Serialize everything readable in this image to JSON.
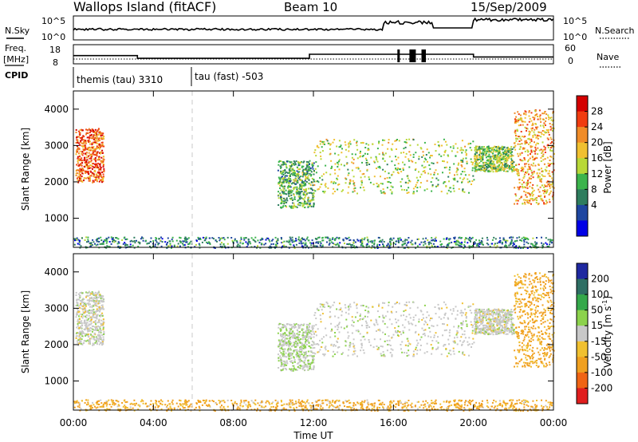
{
  "header": {
    "title": "Wallops Island (fitACF)",
    "beam": "Beam 10",
    "date": "15/Sep/2009"
  },
  "top_panels": {
    "nsky_label": "N.Sky",
    "nsky_ticks": [
      "10^5",
      "10^0"
    ],
    "nsearch_label": "N.Search",
    "freq_label_1": "Freq.",
    "freq_label_2": "[MHz]",
    "freq_ticks": [
      "18",
      "8"
    ],
    "nave_label": "Nave",
    "nave_ticks": [
      "60",
      "0"
    ],
    "cpid_label": "CPID",
    "cpid_1": "themis (tau) 3310",
    "cpid_2": "tau (fast) -503"
  },
  "time_axis": {
    "ticks": [
      "00:00",
      "04:00",
      "08:00",
      "12:00",
      "16:00",
      "20:00",
      "00:00"
    ],
    "label": "Time UT"
  },
  "range_axis": {
    "ticks": [
      "1000",
      "2000",
      "3000",
      "4000"
    ],
    "label": "Slant Range [km]"
  },
  "power_scale": {
    "label": "Power [dB]",
    "ticks": [
      "28",
      "24",
      "20",
      "16",
      "12",
      "8",
      "4"
    ],
    "colors": [
      "#d40000",
      "#f03c10",
      "#f08c28",
      "#f0c030",
      "#b8d838",
      "#3cb44c",
      "#2e7d5e",
      "#1e46a0",
      "#0000e6"
    ]
  },
  "velocity_scale": {
    "label": "Velocity [m s^-1]",
    "ticks": [
      "200",
      "100",
      "50",
      "15",
      "-15",
      "-50",
      "-100",
      "-200"
    ],
    "colors": [
      "#1e28a0",
      "#2e6e64",
      "#34a84a",
      "#8cd24c",
      "#c8c8c8",
      "#f0c030",
      "#f0a020",
      "#f06414",
      "#e01e1e"
    ]
  },
  "chart_data": {
    "type": "heatmap",
    "x_unit": "hours UT",
    "xlim": [
      0,
      24
    ],
    "ylim": [
      200,
      4500
    ],
    "echo_regions": [
      {
        "x": [
          0.1,
          1.5
        ],
        "y": [
          2000,
          3500
        ],
        "power_dB": 26,
        "velocity": 0
      },
      {
        "x": [
          0.0,
          24.0
        ],
        "y": [
          200,
          500
        ],
        "power_dB": 8,
        "velocity": -40
      },
      {
        "x": [
          10.2,
          12.0
        ],
        "y": [
          1300,
          2600
        ],
        "power_dB": 12,
        "velocity": 10
      },
      {
        "x": [
          12.0,
          20.0
        ],
        "y": [
          1700,
          3200
        ],
        "power_dB": 16,
        "velocity": 0
      },
      {
        "x": [
          20.0,
          22.0
        ],
        "y": [
          2300,
          3000
        ],
        "power_dB": 14,
        "velocity": 0
      },
      {
        "x": [
          22.0,
          24.0
        ],
        "y": [
          1400,
          4000
        ],
        "power_dB": 22,
        "velocity": -40
      }
    ],
    "freq_MHz": [
      {
        "x": [
          0,
          3.2
        ],
        "y": 12
      },
      {
        "x": [
          3.2,
          11.8
        ],
        "y": 10
      },
      {
        "x": [
          11.8,
          20.0
        ],
        "y": 13
      },
      {
        "x": [
          20.0,
          24.0
        ],
        "y": 11
      }
    ]
  }
}
